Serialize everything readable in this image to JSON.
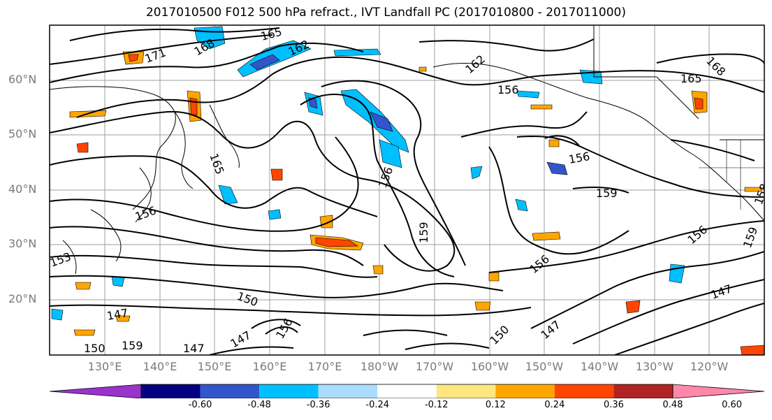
{
  "title": "2017010500 F012 500 hPa refract., IVT Landfall PC (2017010800 - 2017011000)",
  "lat_labels": [
    "60°N",
    "50°N",
    "40°N",
    "30°N",
    "20°N"
  ],
  "lon_labels": [
    "130°E",
    "140°E",
    "150°E",
    "160°E",
    "170°E",
    "180°W",
    "170°W",
    "160°W",
    "150°W",
    "140°W",
    "130°W",
    "120°W"
  ],
  "contour_labels": [
    "171",
    "168",
    "165",
    "162",
    "162",
    "156",
    "168",
    "165",
    "165",
    "156",
    "159",
    "156",
    "159",
    "159",
    "156",
    "153",
    "156",
    "150",
    "147",
    "147",
    "147",
    "150",
    "147",
    "147",
    "156",
    "158",
    "159",
    "156",
    "150"
  ],
  "colorbar": {
    "colors": [
      "#9933cc",
      "#000080",
      "#3355cc",
      "#00bfff",
      "#aadcff",
      "#ffffff",
      "#ffe680",
      "#ffa500",
      "#ff4500",
      "#b22222",
      "#ff88aa"
    ],
    "tick_labels": [
      "-0.60",
      "-0.48",
      "-0.36",
      "-0.24",
      "-0.12",
      "0.12",
      "0.24",
      "0.36",
      "0.48",
      "0.60"
    ]
  },
  "colors": {
    "contour": "#000000",
    "coast": "#000000",
    "grid": "#9e9e9e",
    "axis_label": "#7a7a7a"
  }
}
